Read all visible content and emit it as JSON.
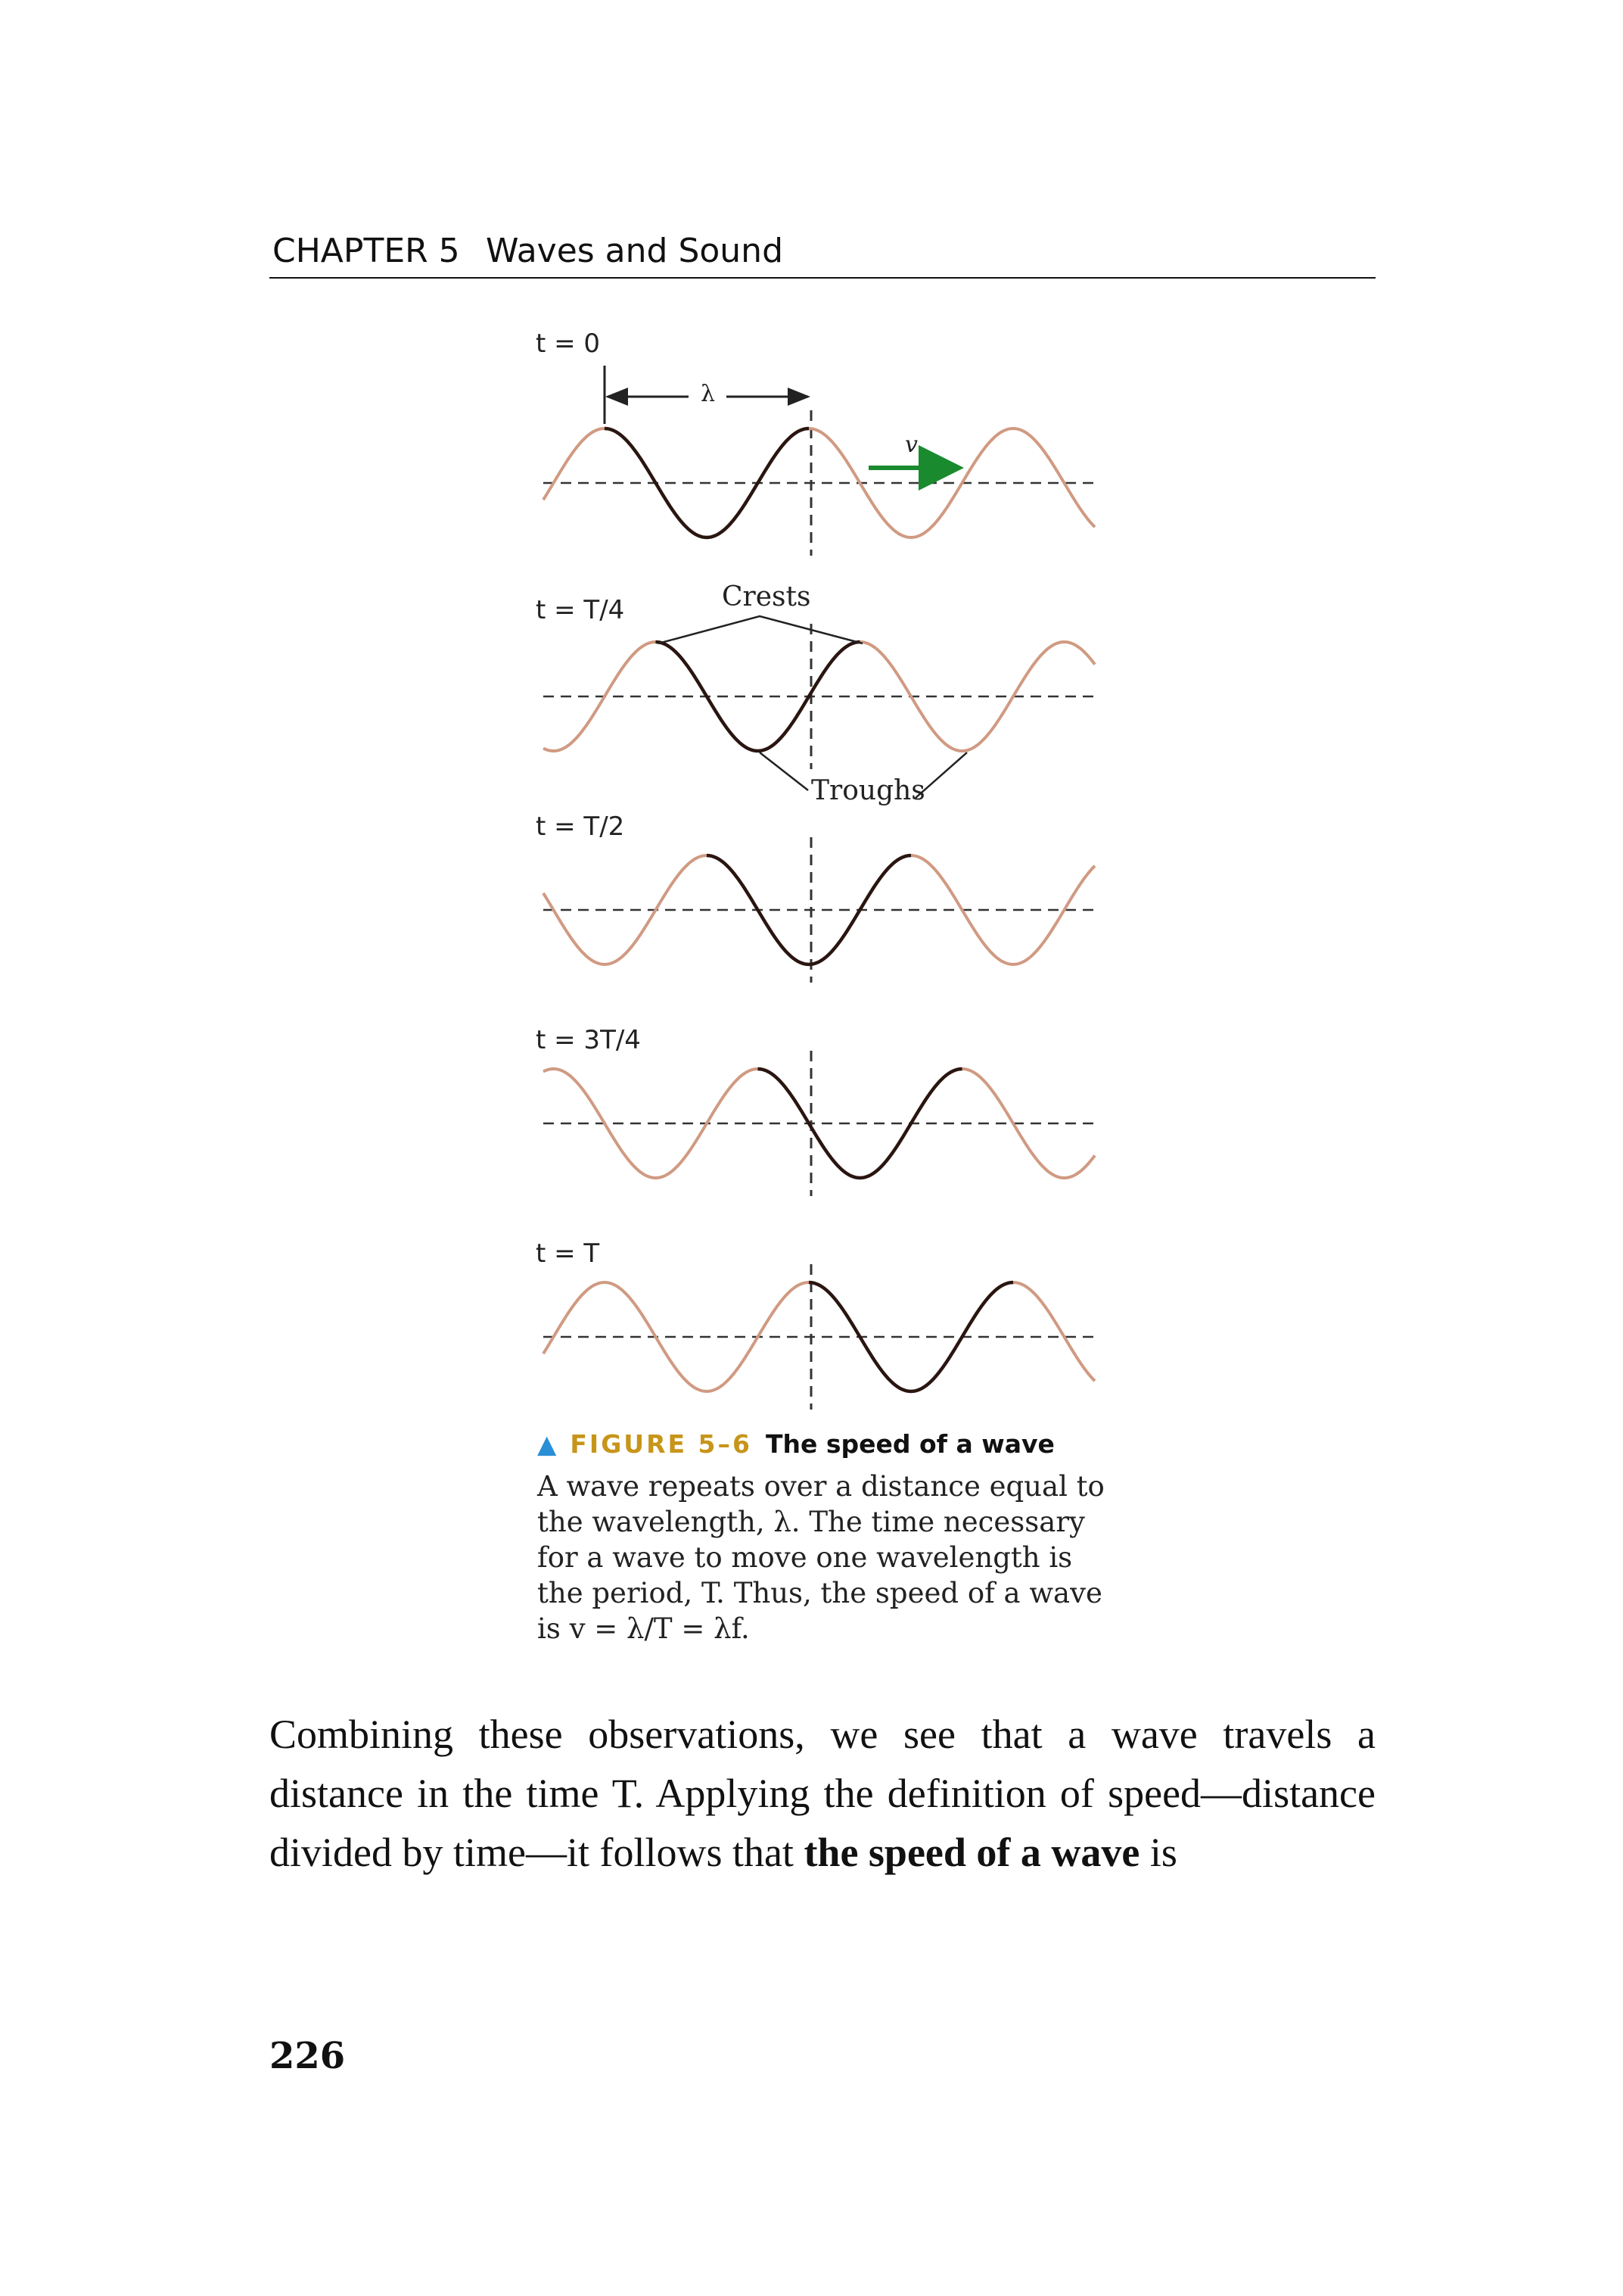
{
  "running_head": {
    "chapter": "CHAPTER 5",
    "section": "Waves and Sound"
  },
  "figure": {
    "time_labels": [
      "t = 0",
      "t = T/4",
      "t = T/2",
      "t = 3T/4",
      "t = T"
    ],
    "lambda_label": "λ",
    "velocity_label": "v",
    "crests_label": "Crests",
    "troughs_label": "Troughs",
    "colors": {
      "wave": "#d09a82",
      "highlight": "#2a1510",
      "arrow": "#1a8a2e",
      "axis": "#333333"
    },
    "caption": {
      "number": "FIGURE 5–6",
      "title": "The speed of a wave",
      "lines": [
        "A wave repeats over a distance equal to",
        "the wavelength, λ. The time necessary",
        "for a wave to move one wavelength is",
        "the period, T. Thus, the speed of a wave",
        "is v = λ/T = λf."
      ]
    }
  },
  "body": {
    "text_before_bold": "Combining these observations, we see that a wave travels a distance in the time T. Applying the definition of speed—distance divided by time—it follows that ",
    "bold_text": "the speed of a wave",
    "text_after_bold": " is"
  },
  "page_number": "226"
}
